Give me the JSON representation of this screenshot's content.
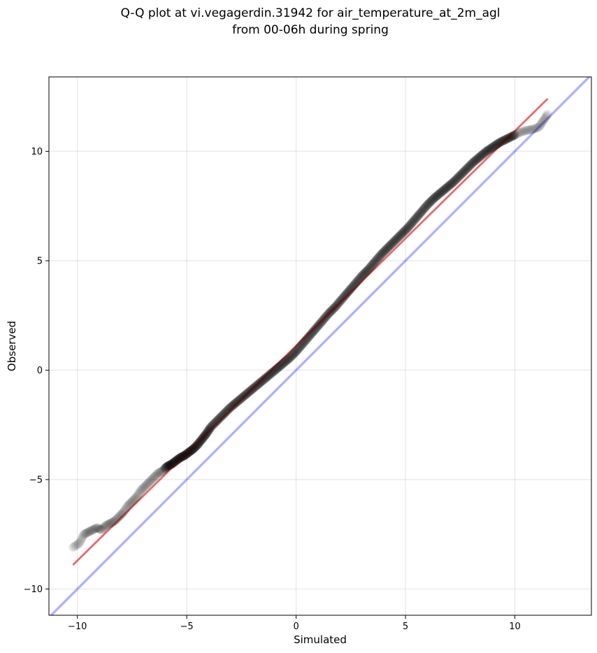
{
  "chart_data": {
    "type": "scatter",
    "title": [
      "Q-Q plot at vi.vegagerdin.31942 for air_temperature_at_2m_agl",
      "from 00-06h during spring"
    ],
    "xlabel": "Simulated",
    "ylabel": "Observed",
    "xlim": [
      -11.3,
      13.5
    ],
    "ylim": [
      -11.2,
      13.4
    ],
    "xticks": [
      -10,
      -5,
      0,
      5,
      10
    ],
    "yticks": [
      -10,
      -5,
      0,
      5,
      10
    ],
    "xtick_labels": [
      "−10",
      "−5",
      "0",
      "5",
      "10"
    ],
    "ytick_labels": [
      "−10",
      "−5",
      "0",
      "5",
      "10"
    ],
    "grid": true,
    "identity_line": {
      "color": "#0000ff",
      "opacity": 0.3
    },
    "fit_line": {
      "x": [
        -10.2,
        11.5
      ],
      "y": [
        -8.9,
        12.4
      ],
      "color": "#ff0000",
      "opacity": 0.35
    },
    "points_color": "#000000",
    "quantile_points": {
      "x": [
        -10.2,
        -9.9,
        -9.7,
        -9.5,
        -9.3,
        -9.1,
        -8.9,
        -8.7,
        -8.5,
        -8.3,
        -8.1,
        -7.9,
        -7.7,
        -7.5,
        -7.3,
        -7.1,
        -6.9,
        -6.7,
        -6.5,
        -6.3,
        -6.1,
        -5.9,
        -5.7,
        -5.5,
        -5.3,
        -5.1,
        -4.9,
        -4.7,
        -4.5,
        -4.3,
        -4.1,
        -3.9,
        -3.6,
        -3.3,
        -3.0,
        -2.7,
        -2.4,
        -2.1,
        -1.8,
        -1.5,
        -1.2,
        -0.9,
        -0.6,
        -0.3,
        0.0,
        0.3,
        0.6,
        0.9,
        1.2,
        1.5,
        1.8,
        2.1,
        2.4,
        2.7,
        3.0,
        3.3,
        3.6,
        3.9,
        4.2,
        4.5,
        4.8,
        5.1,
        5.4,
        5.7,
        6.0,
        6.3,
        6.6,
        6.9,
        7.2,
        7.5,
        7.8,
        8.1,
        8.4,
        8.7,
        9.0,
        9.3,
        9.6,
        9.9,
        10.2,
        10.5,
        10.8,
        11.1,
        11.3,
        11.5
      ],
      "y": [
        -8.1,
        -7.9,
        -7.5,
        -7.4,
        -7.3,
        -7.2,
        -7.3,
        -7.1,
        -7.0,
        -6.9,
        -6.7,
        -6.5,
        -6.2,
        -6.0,
        -5.8,
        -5.5,
        -5.3,
        -5.1,
        -4.9,
        -4.7,
        -4.6,
        -4.4,
        -4.3,
        -4.15,
        -4.0,
        -3.9,
        -3.75,
        -3.6,
        -3.4,
        -3.15,
        -2.9,
        -2.6,
        -2.3,
        -2.0,
        -1.7,
        -1.45,
        -1.2,
        -0.95,
        -0.7,
        -0.45,
        -0.2,
        0.05,
        0.3,
        0.55,
        0.85,
        1.2,
        1.55,
        1.9,
        2.25,
        2.6,
        2.9,
        3.25,
        3.6,
        3.95,
        4.3,
        4.6,
        4.95,
        5.3,
        5.6,
        5.9,
        6.2,
        6.5,
        6.85,
        7.2,
        7.55,
        7.85,
        8.1,
        8.35,
        8.6,
        8.9,
        9.2,
        9.5,
        9.75,
        10.0,
        10.2,
        10.4,
        10.55,
        10.7,
        10.85,
        10.95,
        11.0,
        11.1,
        11.4,
        11.7
      ]
    }
  }
}
